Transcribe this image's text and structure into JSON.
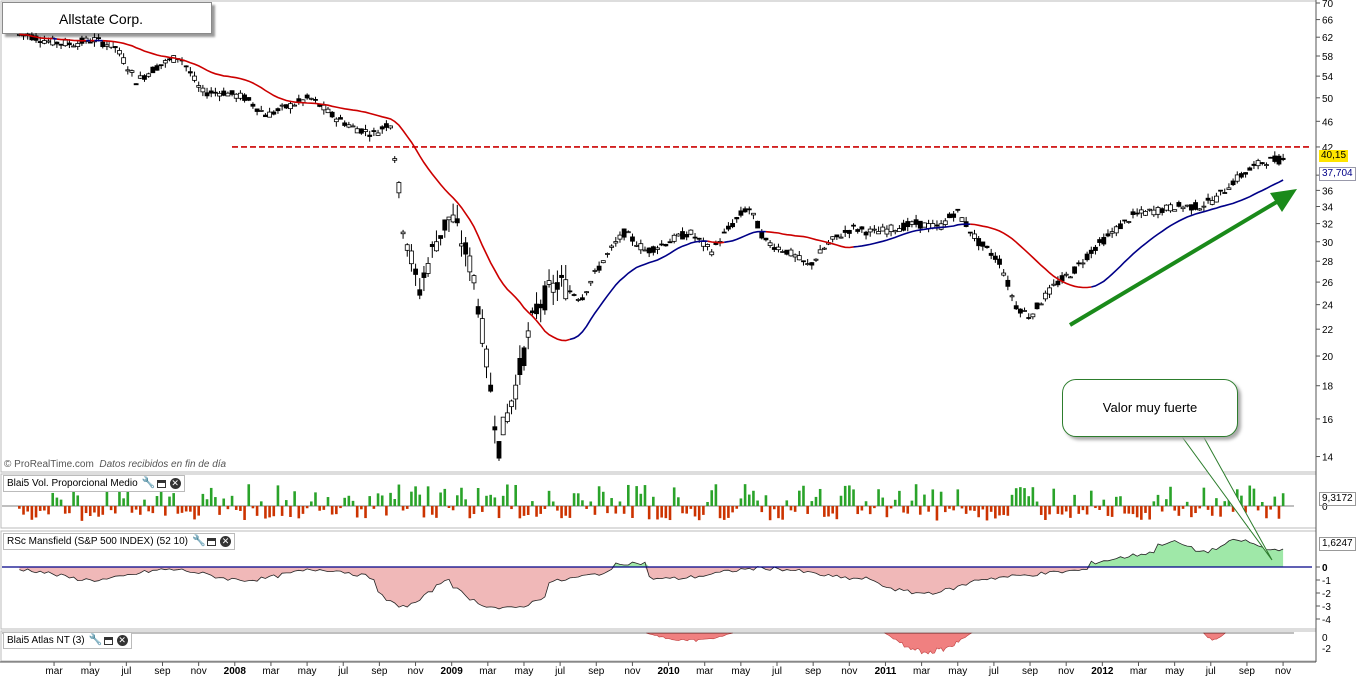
{
  "chart_title": "Allstate Corp.",
  "watermark": {
    "brand": "© ProRealTime.com",
    "note": "Datos recibidos en fin de día"
  },
  "price_tags": {
    "last": "40,15",
    "ma": "37,704"
  },
  "annotation": "Valor muy fuerte",
  "panels": {
    "volume": {
      "label": "Blai5 Vol. Proporcional Medio",
      "value": "9,3172",
      "axis": [
        "0"
      ]
    },
    "mansfield": {
      "label": "RSc Mansfield (S&P 500 INDEX) (52 10)",
      "value": "1,6247",
      "axis": [
        "0",
        "-1",
        "-2",
        "-3",
        "-4"
      ]
    },
    "atlas": {
      "label": "Blai5 Atlas NT (3)",
      "axis": [
        "0",
        "-2"
      ]
    }
  },
  "colors": {
    "up_bar": "#2aa32a",
    "down_bar": "#cc3300",
    "ma_red": "#cc0000",
    "ma_blue": "#000088",
    "arrow": "#1a8a1a",
    "resistance": "#cc0000",
    "rs_pos": "#9fe8a8",
    "rs_neg": "#f0b8b8"
  },
  "icons": [
    "wrench-icon",
    "window-icon",
    "close-icon"
  ],
  "chart_data": {
    "type": "candlestick",
    "title": "Allstate Corp.",
    "y_scale": "log",
    "ylim": [
      13,
      70
    ],
    "y_ticks": [
      14,
      16,
      18,
      20,
      22,
      24,
      26,
      28,
      30,
      32,
      34,
      36,
      38,
      42,
      46,
      50,
      54,
      58,
      62,
      66,
      70
    ],
    "x_ticks": [
      {
        "label": "mar",
        "year": false
      },
      {
        "label": "may",
        "year": false
      },
      {
        "label": "jul",
        "year": false
      },
      {
        "label": "sep",
        "year": false
      },
      {
        "label": "nov",
        "year": false
      },
      {
        "label": "2008",
        "year": true
      },
      {
        "label": "mar",
        "year": false
      },
      {
        "label": "may",
        "year": false
      },
      {
        "label": "jul",
        "year": false
      },
      {
        "label": "sep",
        "year": false
      },
      {
        "label": "nov",
        "year": false
      },
      {
        "label": "2009",
        "year": true
      },
      {
        "label": "mar",
        "year": false
      },
      {
        "label": "may",
        "year": false
      },
      {
        "label": "jul",
        "year": false
      },
      {
        "label": "sep",
        "year": false
      },
      {
        "label": "nov",
        "year": false
      },
      {
        "label": "2010",
        "year": true
      },
      {
        "label": "mar",
        "year": false
      },
      {
        "label": "may",
        "year": false
      },
      {
        "label": "jul",
        "year": false
      },
      {
        "label": "sep",
        "year": false
      },
      {
        "label": "nov",
        "year": false
      },
      {
        "label": "2011",
        "year": true
      },
      {
        "label": "mar",
        "year": false
      },
      {
        "label": "may",
        "year": false
      },
      {
        "label": "jul",
        "year": false
      },
      {
        "label": "sep",
        "year": false
      },
      {
        "label": "nov",
        "year": false
      },
      {
        "label": "2012",
        "year": true
      },
      {
        "label": "mar",
        "year": false
      },
      {
        "label": "may",
        "year": false
      },
      {
        "label": "jul",
        "year": false
      },
      {
        "label": "sep",
        "year": false
      },
      {
        "label": "nov",
        "year": false
      }
    ],
    "last_close": 40.15,
    "moving_average_last": 37.704,
    "resistance_level": 42.0,
    "close_path": [
      [
        2007.0,
        62.5
      ],
      [
        2007.1,
        61
      ],
      [
        2007.2,
        60.5
      ],
      [
        2007.3,
        61.5
      ],
      [
        2007.4,
        60
      ],
      [
        2007.5,
        53
      ],
      [
        2007.6,
        56
      ],
      [
        2007.7,
        58
      ],
      [
        2007.8,
        51
      ],
      [
        2007.9,
        51
      ],
      [
        2008.0,
        50
      ],
      [
        2008.1,
        47
      ],
      [
        2008.2,
        48.5
      ],
      [
        2008.3,
        50
      ],
      [
        2008.4,
        47
      ],
      [
        2008.5,
        45
      ],
      [
        2008.6,
        44
      ],
      [
        2008.67,
        46
      ],
      [
        2008.72,
        33
      ],
      [
        2008.8,
        25
      ],
      [
        2008.88,
        30
      ],
      [
        2008.95,
        33
      ],
      [
        2009.05,
        27
      ],
      [
        2009.12,
        19
      ],
      [
        2009.17,
        14.5
      ],
      [
        2009.25,
        18
      ],
      [
        2009.35,
        24
      ],
      [
        2009.45,
        26
      ],
      [
        2009.55,
        24.5
      ],
      [
        2009.65,
        28
      ],
      [
        2009.75,
        31
      ],
      [
        2009.85,
        29
      ],
      [
        2009.95,
        30
      ],
      [
        2010.05,
        31
      ],
      [
        2010.15,
        29
      ],
      [
        2010.25,
        32
      ],
      [
        2010.32,
        34
      ],
      [
        2010.4,
        30
      ],
      [
        2010.5,
        29
      ],
      [
        2010.6,
        27.5
      ],
      [
        2010.7,
        30
      ],
      [
        2010.8,
        31.5
      ],
      [
        2010.9,
        31
      ],
      [
        2011.0,
        31.5
      ],
      [
        2011.1,
        32
      ],
      [
        2011.2,
        31.5
      ],
      [
        2011.28,
        33.5
      ],
      [
        2011.38,
        30
      ],
      [
        2011.48,
        28
      ],
      [
        2011.55,
        24
      ],
      [
        2011.62,
        23
      ],
      [
        2011.68,
        24.5
      ],
      [
        2011.75,
        26
      ],
      [
        2011.82,
        27
      ],
      [
        2011.9,
        29
      ],
      [
        2012.0,
        31
      ],
      [
        2012.1,
        33
      ],
      [
        2012.2,
        33.5
      ],
      [
        2012.3,
        34
      ],
      [
        2012.4,
        34
      ],
      [
        2012.48,
        35
      ],
      [
        2012.55,
        37
      ],
      [
        2012.62,
        38.5
      ],
      [
        2012.7,
        40
      ],
      [
        2012.78,
        40.15
      ]
    ]
  }
}
